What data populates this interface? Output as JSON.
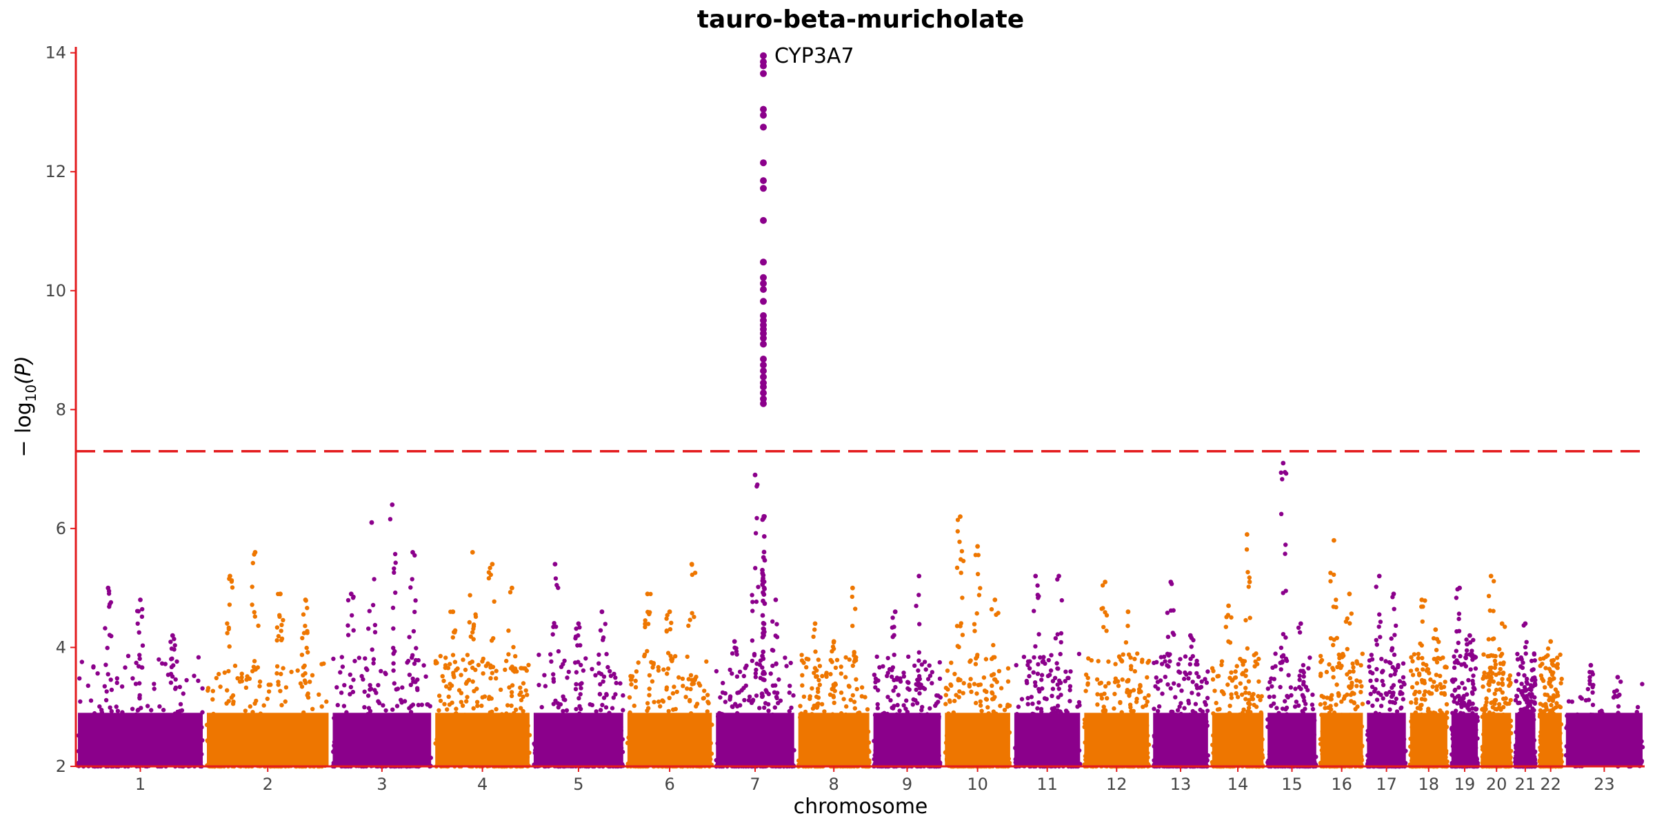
{
  "chart_data": {
    "type": "scatter",
    "title": "tauro-beta-muricholate",
    "xlabel": "chromosome",
    "ylabel_parts": [
      "− log",
      "10",
      "(P)"
    ],
    "ylim": [
      2,
      14.1
    ],
    "yticks": [
      2,
      4,
      6,
      8,
      10,
      12,
      14
    ],
    "significance_line": 7.3,
    "colors": {
      "odd": "#8b008b",
      "even": "#ee7600",
      "threshold": "#e31a1c",
      "axis": "#e31a1c"
    },
    "chromosomes": [
      {
        "label": "1",
        "peaks": [
          5.0,
          4.8,
          4.2
        ]
      },
      {
        "label": "2",
        "peaks": [
          5.2,
          5.6,
          4.9,
          4.8
        ]
      },
      {
        "label": "3",
        "peaks": [
          4.9,
          6.1,
          6.4,
          5.6
        ]
      },
      {
        "label": "4",
        "peaks": [
          4.6,
          5.6,
          5.4,
          5.0
        ]
      },
      {
        "label": "5",
        "peaks": [
          5.4,
          4.4,
          4.6
        ]
      },
      {
        "label": "6",
        "peaks": [
          4.9,
          4.6,
          5.4
        ]
      },
      {
        "label": "7",
        "peaks": [
          4.1,
          6.9,
          4.8
        ]
      },
      {
        "label": "8",
        "peaks": [
          4.4,
          4.1,
          5.0
        ]
      },
      {
        "label": "9",
        "peaks": [
          4.6,
          5.2
        ]
      },
      {
        "label": "10",
        "peaks": [
          6.2,
          5.7,
          4.8
        ]
      },
      {
        "label": "11",
        "peaks": [
          5.2,
          5.2
        ]
      },
      {
        "label": "12",
        "peaks": [
          5.1,
          4.6
        ]
      },
      {
        "label": "13",
        "peaks": [
          5.1,
          4.2
        ]
      },
      {
        "label": "14",
        "peaks": [
          4.7,
          5.9
        ]
      },
      {
        "label": "15",
        "peaks": [
          7.1,
          4.4
        ]
      },
      {
        "label": "16",
        "peaks": [
          5.8,
          4.9
        ]
      },
      {
        "label": "17",
        "peaks": [
          5.2,
          4.9
        ]
      },
      {
        "label": "18",
        "peaks": [
          4.8,
          4.3
        ]
      },
      {
        "label": "19",
        "peaks": [
          5.0,
          4.2
        ]
      },
      {
        "label": "20",
        "peaks": [
          5.2,
          4.4
        ]
      },
      {
        "label": "21",
        "peaks": [
          4.4
        ]
      },
      {
        "label": "22",
        "peaks": [
          4.1
        ]
      },
      {
        "label": "23",
        "peaks": [
          3.7,
          3.5
        ]
      }
    ],
    "top_hit": {
      "label": "CYP3A7",
      "chromosome": "7",
      "values": [
        13.95,
        13.85,
        13.78,
        13.65,
        13.05,
        12.95,
        12.75,
        12.15,
        11.85,
        11.72,
        11.18,
        10.48,
        10.22,
        10.12,
        10.02,
        9.82,
        9.58,
        9.5,
        9.42,
        9.35,
        9.28,
        9.2,
        9.1,
        8.85,
        8.75,
        8.65,
        8.55,
        8.45,
        8.38,
        8.28,
        8.18,
        8.1
      ]
    }
  }
}
